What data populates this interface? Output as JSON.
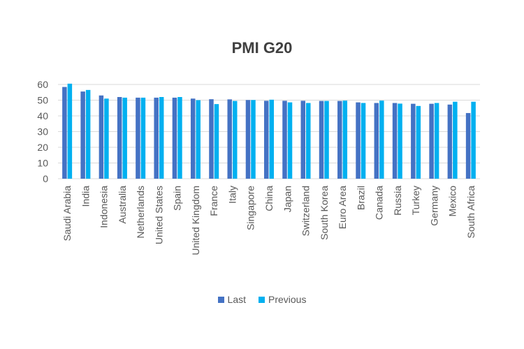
{
  "chart_data": {
    "type": "bar",
    "title": "PMI G20",
    "categories": [
      "Saudi Arabia",
      "India",
      "Indonesia",
      "Australia",
      "Netherlands",
      "United States",
      "Spain",
      "United Kingdom",
      "France",
      "Italy",
      "Singapore",
      "China",
      "Japan",
      "Switzerland",
      "South Korea",
      "Euro Area",
      "Brazil",
      "Canada",
      "Russia",
      "Turkey",
      "Germany",
      "Mexico",
      "South Africa"
    ],
    "series": [
      {
        "name": "Last",
        "color": "#4472C4",
        "values": [
          58.4,
          55.5,
          53,
          52,
          51.6,
          51.6,
          51.6,
          51,
          50.6,
          50.5,
          50.1,
          49.6,
          49.6,
          49.6,
          49.5,
          49.5,
          48.6,
          48.2,
          48.2,
          47.7,
          47.7,
          47.2,
          41.8
        ]
      },
      {
        "name": "Previous",
        "color": "#00B0F0",
        "values": [
          60.5,
          56.5,
          51,
          51.6,
          51.6,
          52,
          52,
          50,
          47.5,
          49.5,
          50.1,
          50.3,
          48.6,
          48.2,
          49.5,
          49.7,
          48.2,
          49.7,
          47.8,
          46.3,
          48.2,
          49,
          49
        ]
      }
    ],
    "ylim": [
      0,
      60
    ],
    "yticks": [
      "0",
      "10",
      "20",
      "30",
      "40",
      "50",
      "60"
    ],
    "grid": true,
    "legend": "bottom"
  }
}
